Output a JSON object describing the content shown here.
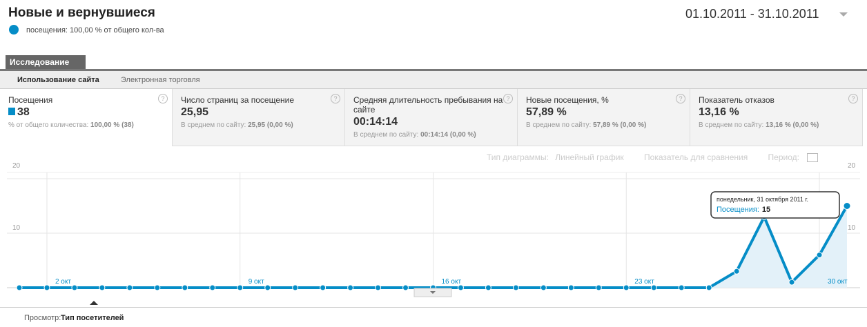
{
  "header": {
    "title": "Новые и вернувшиеся",
    "segment": "посещения: 100,00 % от общего кол-ва",
    "date_range": "01.10.2011 - 31.10.2011"
  },
  "tabs": [
    "Исследование"
  ],
  "subtabs": [
    "Использование сайта",
    "Электронная торговля"
  ],
  "help_icon": "?",
  "metrics": [
    {
      "label": "Посещения",
      "value": "38",
      "note": "% от общего количества:",
      "note_value": "100,00 % (38)"
    },
    {
      "label": "Число страниц за посещение",
      "value": "25,95",
      "note": "В среднем по сайту:",
      "note_value": "25,95 (0,00 %)"
    },
    {
      "label": "Средняя длительность пребывания на сайте",
      "value": "00:14:14",
      "note": "В среднем по сайту:",
      "note_value": "00:14:14 (0,00 %)"
    },
    {
      "label": "Новые посещения, %",
      "value": "57,89 %",
      "note": "В среднем по сайту:",
      "note_value": "57,89 % (0,00 %)"
    },
    {
      "label": "Показатель отказов",
      "value": "13,16 %",
      "note": "В среднем по сайту:",
      "note_value": "13,16 % (0,00 %)"
    }
  ],
  "toolbar": {
    "chart_type_label": "Тип диаграммы:",
    "chart_type": "Линейный график",
    "compare": "Показатель для сравнения",
    "period": "Период:"
  },
  "chart_data": {
    "type": "line",
    "color": "#058dc7",
    "area": true,
    "grid": true,
    "categories": [
      null,
      "2 окт",
      null,
      null,
      null,
      null,
      null,
      null,
      "9 окт",
      null,
      null,
      null,
      null,
      null,
      null,
      "16 окт",
      null,
      null,
      null,
      null,
      null,
      null,
      "23 окт",
      null,
      null,
      null,
      null,
      null,
      null,
      "30 окт",
      null
    ],
    "values": [
      0,
      0,
      0,
      0,
      0,
      0,
      0,
      0,
      0,
      0,
      0,
      0,
      0,
      0,
      0,
      0,
      0,
      0,
      0,
      0,
      0,
      0,
      0,
      0,
      0,
      0,
      3,
      13,
      1,
      6,
      15
    ],
    "ylim": [
      0,
      20
    ],
    "yticks": [
      10,
      20
    ],
    "tooltip": {
      "title": "понедельник, 31 октября 2011 г.",
      "label": "Посещения:"
    }
  },
  "footer": {
    "label": "Просмотр:",
    "value": "Тип посетителей"
  }
}
